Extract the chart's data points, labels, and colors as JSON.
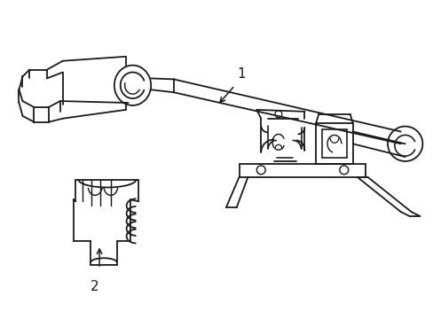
{
  "background_color": "#ffffff",
  "line_color": "#1a1a1a",
  "line_width": 1.3,
  "label_1": "1",
  "label_2": "2",
  "figsize": [
    4.89,
    3.6
  ],
  "dpi": 100
}
